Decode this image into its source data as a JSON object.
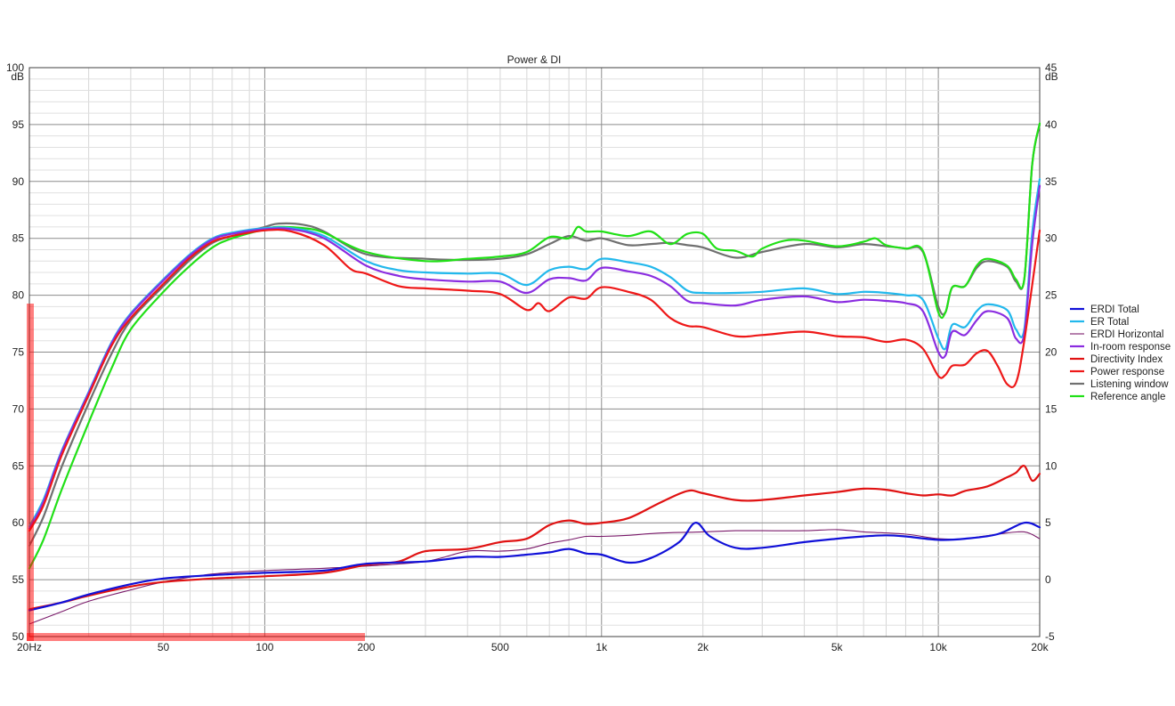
{
  "chart_data": {
    "type": "line",
    "title": "Power & DI",
    "xscale": "log",
    "xlim": [
      20,
      20000
    ],
    "ylim": [
      50,
      100
    ],
    "y2lim": [
      -5,
      45
    ],
    "ylabel": "dB",
    "y2label": "dB",
    "grid": true,
    "legend_position": "right",
    "x_ticks": [
      {
        "v": 20,
        "label": "20Hz"
      },
      {
        "v": 50,
        "label": "50"
      },
      {
        "v": 100,
        "label": "100"
      },
      {
        "v": 200,
        "label": "200"
      },
      {
        "v": 500,
        "label": "500"
      },
      {
        "v": 1000,
        "label": "1k"
      },
      {
        "v": 2000,
        "label": "2k"
      },
      {
        "v": 5000,
        "label": "5k"
      },
      {
        "v": 10000,
        "label": "10k"
      },
      {
        "v": 20000,
        "label": "20k"
      }
    ],
    "y_ticks": [
      "50",
      "55",
      "60",
      "65",
      "70",
      "75",
      "80",
      "85",
      "90",
      "95",
      "100"
    ],
    "y2_ticks": [
      "-5",
      "0",
      "5",
      "10",
      "15",
      "20",
      "25",
      "30",
      "35",
      "40",
      "45"
    ],
    "series": [
      {
        "name": "ERDI Total",
        "color": "#1010d8",
        "width": 2.2,
        "axis": "right",
        "x": [
          20,
          25,
          30,
          40,
          50,
          70,
          100,
          150,
          200,
          300,
          400,
          500,
          600,
          700,
          800,
          900,
          1000,
          1200,
          1400,
          1700,
          1900,
          2100,
          2500,
          3000,
          4000,
          5000,
          6000,
          7000,
          8000,
          10000,
          12000,
          15000,
          18000,
          20000
        ],
        "y": [
          -2.7,
          -2.0,
          -1.3,
          -0.4,
          0.1,
          0.4,
          0.6,
          0.8,
          1.4,
          1.6,
          2.0,
          2.0,
          2.2,
          2.4,
          2.7,
          2.3,
          2.2,
          1.5,
          1.9,
          3.3,
          5.0,
          3.8,
          2.8,
          2.8,
          3.3,
          3.6,
          3.8,
          3.9,
          3.8,
          3.5,
          3.6,
          4.0,
          5.0,
          4.6
        ]
      },
      {
        "name": "ER Total",
        "color": "#22b8ec",
        "width": 2.2,
        "axis": "left",
        "x": [
          20,
          22,
          25,
          30,
          35,
          40,
          50,
          60,
          70,
          80,
          100,
          120,
          150,
          200,
          250,
          300,
          400,
          500,
          600,
          700,
          800,
          900,
          1000,
          1200,
          1400,
          1600,
          1800,
          2000,
          2500,
          3000,
          4000,
          5000,
          6000,
          7000,
          8000,
          9000,
          10000,
          10500,
          11000,
          12000,
          13000,
          14000,
          16000,
          17000,
          18000,
          19000,
          20000
        ],
        "y": [
          59.7,
          62.0,
          66.4,
          71.5,
          75.8,
          78.4,
          81.4,
          83.6,
          85.0,
          85.5,
          85.9,
          85.9,
          85.2,
          83.0,
          82.2,
          82.0,
          81.9,
          81.9,
          80.9,
          82.2,
          82.5,
          82.3,
          83.2,
          82.9,
          82.5,
          81.6,
          80.4,
          80.2,
          80.2,
          80.3,
          80.6,
          80.1,
          80.3,
          80.2,
          80.0,
          79.6,
          76.2,
          75.3,
          77.4,
          77.2,
          78.6,
          79.2,
          78.7,
          77.0,
          77.0,
          85.5,
          90.2
        ]
      },
      {
        "name": "ERDI Horizontal",
        "color": "#7a1a6a",
        "width": 1.1,
        "axis": "right",
        "x": [
          20,
          25,
          30,
          40,
          50,
          70,
          100,
          150,
          200,
          300,
          400,
          500,
          600,
          700,
          800,
          900,
          1000,
          1200,
          1500,
          2000,
          2500,
          3000,
          4000,
          5000,
          6000,
          8000,
          10000,
          12000,
          15000,
          18000,
          20000
        ],
        "y": [
          -3.9,
          -2.8,
          -1.9,
          -0.9,
          -0.2,
          0.5,
          0.8,
          1.0,
          1.2,
          1.6,
          2.5,
          2.5,
          2.7,
          3.2,
          3.5,
          3.8,
          3.8,
          3.9,
          4.1,
          4.2,
          4.3,
          4.3,
          4.3,
          4.4,
          4.2,
          4.0,
          3.6,
          3.6,
          4.0,
          4.2,
          3.6
        ]
      },
      {
        "name": "In-room response",
        "color": "#8a2ce0",
        "width": 2.2,
        "axis": "left",
        "x": [
          20,
          22,
          25,
          30,
          35,
          40,
          50,
          60,
          70,
          80,
          100,
          120,
          150,
          200,
          250,
          300,
          400,
          500,
          600,
          700,
          800,
          900,
          1000,
          1200,
          1400,
          1600,
          1800,
          2000,
          2500,
          3000,
          4000,
          5000,
          6000,
          7000,
          8000,
          9000,
          10000,
          10500,
          11000,
          12000,
          13000,
          14000,
          16000,
          17000,
          18000,
          19000,
          20000
        ],
        "y": [
          59.5,
          61.8,
          66.3,
          71.4,
          75.7,
          78.3,
          81.3,
          83.5,
          84.9,
          85.4,
          85.8,
          85.8,
          85.0,
          82.6,
          81.7,
          81.4,
          81.2,
          81.2,
          80.2,
          81.4,
          81.5,
          81.3,
          82.4,
          82.1,
          81.7,
          80.8,
          79.5,
          79.3,
          79.1,
          79.6,
          79.9,
          79.4,
          79.6,
          79.5,
          79.3,
          78.6,
          75.0,
          74.7,
          76.8,
          76.5,
          77.8,
          78.6,
          78.0,
          76.2,
          76.6,
          84.5,
          89.6
        ]
      },
      {
        "name": "Directivity Index",
        "color": "#e01212",
        "width": 2.2,
        "axis": "right",
        "x": [
          20,
          25,
          30,
          40,
          50,
          70,
          100,
          150,
          200,
          250,
          300,
          400,
          500,
          600,
          700,
          800,
          900,
          1000,
          1200,
          1500,
          1800,
          2000,
          2500,
          3000,
          4000,
          5000,
          6000,
          7000,
          8000,
          9000,
          10000,
          11000,
          12000,
          14000,
          16000,
          17000,
          18000,
          19000,
          20000
        ],
        "y": [
          -2.6,
          -2.0,
          -1.4,
          -0.6,
          -0.2,
          0.1,
          0.3,
          0.6,
          1.3,
          1.6,
          2.5,
          2.7,
          3.3,
          3.6,
          4.8,
          5.2,
          4.9,
          5.0,
          5.4,
          6.8,
          7.8,
          7.6,
          7.0,
          7.0,
          7.4,
          7.7,
          8.0,
          7.9,
          7.6,
          7.4,
          7.5,
          7.4,
          7.8,
          8.2,
          9.0,
          9.4,
          10.0,
          8.7,
          9.3
        ]
      },
      {
        "name": "Power response",
        "color": "#ee1818",
        "width": 2.2,
        "axis": "left",
        "x": [
          20,
          22,
          25,
          30,
          35,
          40,
          50,
          60,
          70,
          80,
          100,
          120,
          150,
          180,
          200,
          250,
          300,
          400,
          500,
          600,
          650,
          700,
          800,
          900,
          1000,
          1200,
          1400,
          1600,
          1800,
          2000,
          2500,
          3000,
          4000,
          5000,
          6000,
          7000,
          8000,
          9000,
          10000,
          10500,
          11000,
          12000,
          13000,
          14000,
          15000,
          16000,
          17000,
          18000,
          20000
        ],
        "y": [
          59.3,
          61.5,
          66.0,
          71.2,
          75.5,
          78.0,
          81.0,
          83.3,
          84.7,
          85.2,
          85.7,
          85.6,
          84.4,
          82.3,
          81.9,
          80.8,
          80.6,
          80.4,
          80.1,
          78.7,
          79.3,
          78.6,
          79.8,
          79.7,
          80.7,
          80.3,
          79.6,
          78.0,
          77.3,
          77.2,
          76.4,
          76.5,
          76.8,
          76.4,
          76.3,
          75.9,
          76.1,
          75.3,
          72.9,
          73.0,
          73.8,
          73.9,
          74.9,
          75.1,
          73.8,
          72.2,
          72.3,
          76.0,
          85.7
        ]
      },
      {
        "name": "Listening window",
        "color": "#707070",
        "width": 2.2,
        "axis": "left",
        "x": [
          20,
          22,
          25,
          30,
          35,
          40,
          50,
          60,
          70,
          80,
          100,
          110,
          130,
          150,
          200,
          300,
          400,
          500,
          600,
          700,
          800,
          900,
          1000,
          1200,
          1400,
          1600,
          1800,
          2000,
          2500,
          3000,
          4000,
          5000,
          6000,
          7000,
          8000,
          9000,
          10000,
          10500,
          11000,
          12000,
          13000,
          14000,
          16000,
          17000,
          18000,
          19000,
          20000
        ],
        "y": [
          58.0,
          60.5,
          65.0,
          70.5,
          74.8,
          77.8,
          80.8,
          83.1,
          84.6,
          85.2,
          86.0,
          86.3,
          86.2,
          85.6,
          83.6,
          83.2,
          83.1,
          83.2,
          83.6,
          84.5,
          85.2,
          84.8,
          85.0,
          84.4,
          84.5,
          84.6,
          84.4,
          84.2,
          83.3,
          83.8,
          84.5,
          84.2,
          84.5,
          84.3,
          84.1,
          83.8,
          79.0,
          78.5,
          80.7,
          80.8,
          82.4,
          83.0,
          82.5,
          81.2,
          81.4,
          91.5,
          95.0
        ]
      },
      {
        "name": "Reference angle",
        "color": "#21e017",
        "width": 2.2,
        "axis": "left",
        "x": [
          20,
          22,
          25,
          30,
          35,
          40,
          50,
          60,
          70,
          80,
          100,
          110,
          130,
          150,
          200,
          300,
          400,
          500,
          600,
          700,
          800,
          850,
          900,
          1000,
          1200,
          1400,
          1600,
          1800,
          2000,
          2200,
          2500,
          2800,
          3000,
          3500,
          4000,
          5000,
          6000,
          6500,
          7000,
          8000,
          9000,
          10000,
          10500,
          11000,
          12000,
          13000,
          14000,
          16000,
          17000,
          18000,
          19000,
          20000
        ],
        "y": [
          56.0,
          58.5,
          63.0,
          68.8,
          73.5,
          77.0,
          80.3,
          82.6,
          84.2,
          85.0,
          85.8,
          86.0,
          85.9,
          85.5,
          83.8,
          83.0,
          83.2,
          83.4,
          83.8,
          85.1,
          85.0,
          86.0,
          85.6,
          85.6,
          85.2,
          85.6,
          84.5,
          85.4,
          85.4,
          84.1,
          83.9,
          83.4,
          84.1,
          84.8,
          84.8,
          84.3,
          84.7,
          85.0,
          84.4,
          84.1,
          83.9,
          78.5,
          78.5,
          80.7,
          80.8,
          82.6,
          83.2,
          82.6,
          81.4,
          81.4,
          91.5,
          95.1
        ]
      }
    ],
    "annotations": [
      {
        "type": "highlight",
        "description": "translucent red L-shaped bracket along left axis and bottom axis"
      }
    ]
  }
}
